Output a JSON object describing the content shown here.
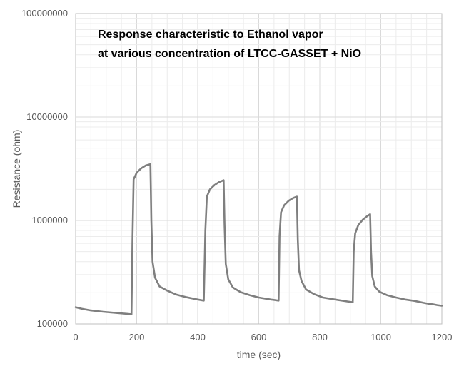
{
  "chart_data": {
    "type": "line",
    "title": [
      "Response characteristic to Ethanol vapor",
      "at various concentration of LTCC-GASSET + NiO"
    ],
    "xlabel": "time (sec)",
    "ylabel": "Resistance (ohm)",
    "xlim": [
      0,
      1200
    ],
    "ylim": [
      100000,
      100000000
    ],
    "yscale": "log",
    "x_ticks": [
      "0",
      "200",
      "400",
      "600",
      "800",
      "1000",
      "1200"
    ],
    "y_ticks": [
      "100000",
      "1000000",
      "10000000",
      "100000000"
    ],
    "grid": true,
    "legend": "none",
    "colors": {
      "series": "#7f7f7f",
      "grid": "#d9d9d9",
      "tick_text": "#595959"
    },
    "series": [
      {
        "x": [
          0,
          20,
          50,
          90,
          130,
          170,
          183,
          186,
          190,
          200,
          215,
          230,
          245,
          248,
          252,
          260,
          275,
          300,
          330,
          360,
          400,
          420,
          425,
          430,
          440,
          455,
          470,
          485,
          488,
          492,
          500,
          515,
          540,
          570,
          600,
          640,
          665,
          668,
          673,
          683,
          698,
          713,
          725,
          728,
          732,
          740,
          755,
          780,
          810,
          850,
          890,
          908,
          911,
          916,
          926,
          941,
          955,
          965,
          968,
          972,
          980,
          995,
          1020,
          1050,
          1080,
          1110,
          1140,
          1160,
          1170,
          1185,
          1200
        ],
        "y": [
          145000,
          140000,
          135000,
          131000,
          128000,
          125000,
          124000,
          600000,
          2500000,
          2900000,
          3200000,
          3400000,
          3500000,
          1000000,
          400000,
          280000,
          230000,
          210000,
          192000,
          182000,
          172000,
          168000,
          800000,
          1700000,
          2000000,
          2200000,
          2350000,
          2450000,
          900000,
          380000,
          270000,
          225000,
          203000,
          190000,
          180000,
          172000,
          168000,
          700000,
          1200000,
          1400000,
          1550000,
          1650000,
          1700000,
          650000,
          330000,
          260000,
          215000,
          195000,
          180000,
          172000,
          165000,
          162000,
          500000,
          750000,
          900000,
          1020000,
          1100000,
          1150000,
          500000,
          290000,
          230000,
          205000,
          190000,
          180000,
          172000,
          167000,
          160000,
          156000,
          155000,
          152000,
          150000
        ]
      }
    ]
  }
}
